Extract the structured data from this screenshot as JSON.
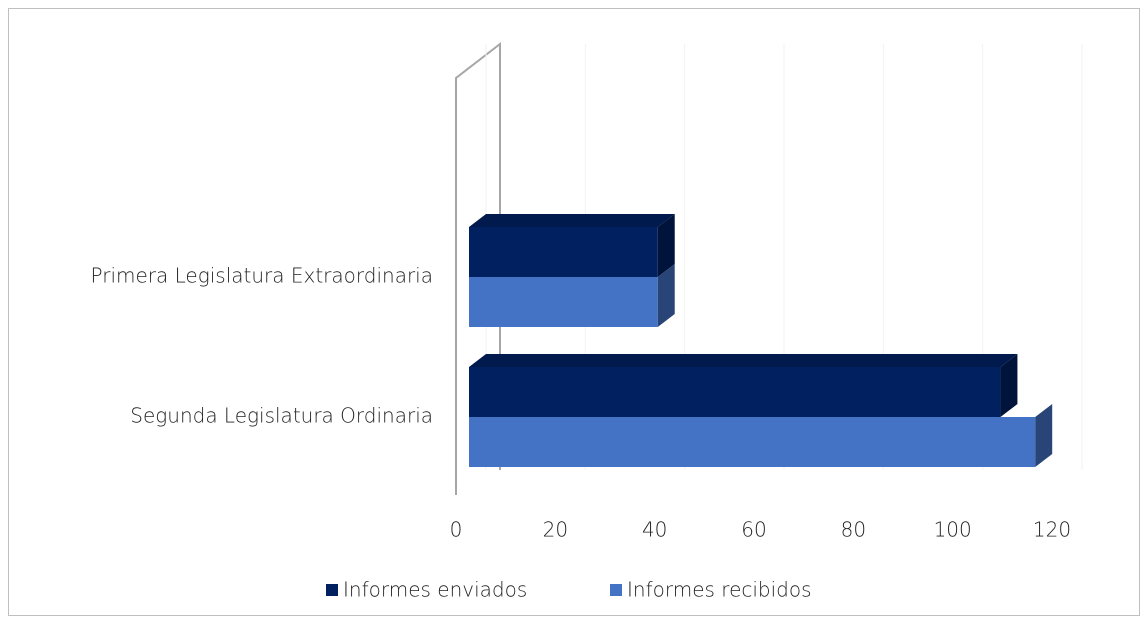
{
  "chart_data": {
    "type": "bar3d_horizontal",
    "categories": [
      "Primera Legislatura Extraordinaria",
      "Segunda Legislatura Ordinaria"
    ],
    "series": [
      {
        "name": "Informes enviados",
        "color": "#002060",
        "values": [
          38,
          107
        ]
      },
      {
        "name": "Informes recibidos",
        "color": "#4472c4",
        "values": [
          38,
          114
        ]
      }
    ],
    "xlim": [
      0,
      120
    ],
    "xticks": [
      0,
      20,
      40,
      60,
      80,
      100,
      120
    ],
    "legend": "bottom"
  }
}
